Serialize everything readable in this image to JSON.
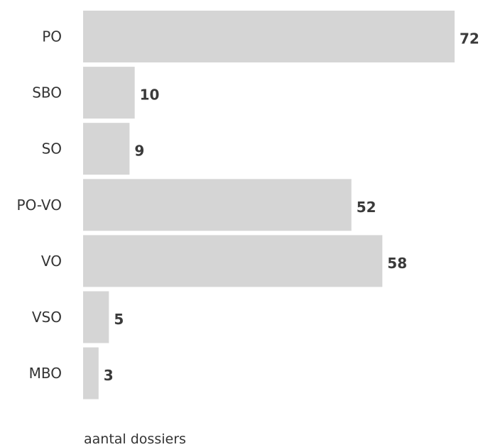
{
  "chart_data": {
    "type": "bar",
    "orientation": "horizontal",
    "categories": [
      "PO",
      "SBO",
      "SO",
      "PO-VO",
      "VO",
      "VSO",
      "MBO"
    ],
    "values": [
      72,
      10,
      9,
      52,
      58,
      5,
      3
    ],
    "title": "",
    "xlabel": "aantal dossiers",
    "ylabel": "",
    "xlim": [
      0,
      72
    ],
    "grid": false,
    "data_labels": true,
    "bar_color": "#d5d5d5",
    "label_color": "#3a3a3a"
  }
}
